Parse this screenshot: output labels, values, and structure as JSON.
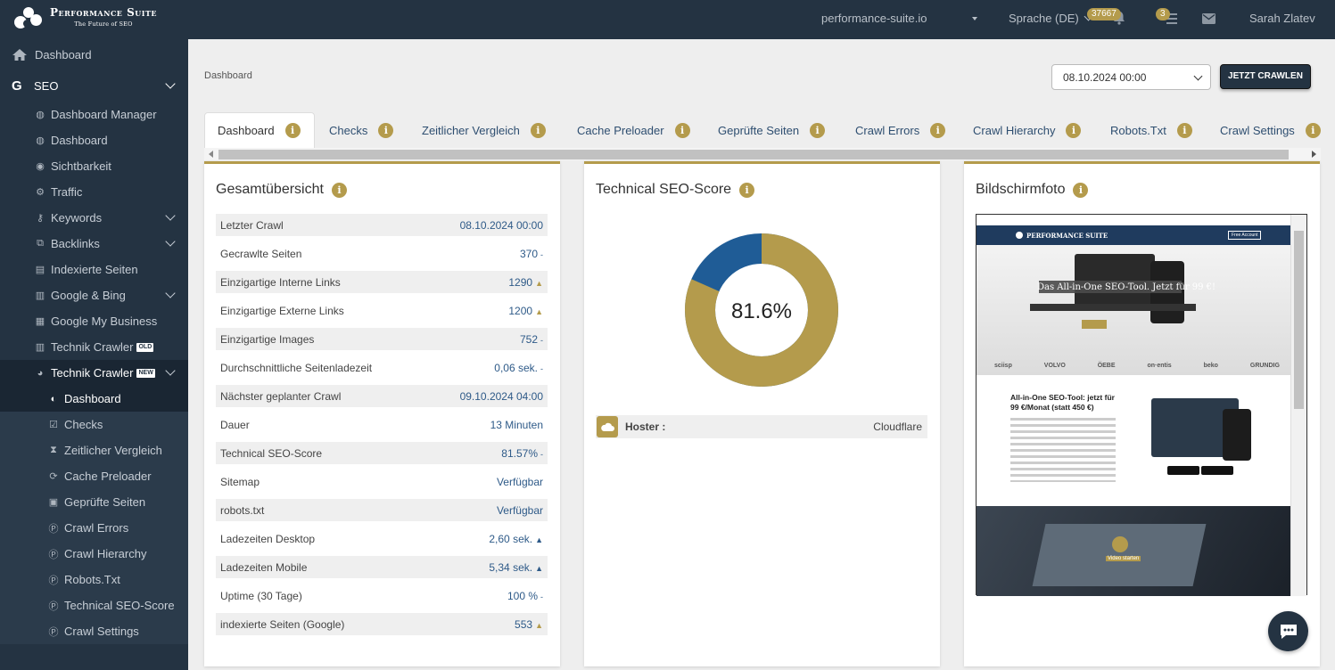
{
  "header": {
    "logo_title": "Performance Suite",
    "logo_subtitle": "The Future of SEO",
    "domain": "performance-suite.io",
    "language": "Sprache (DE)",
    "notifications_count": "37667",
    "tasks_count": "3",
    "user_name": "Sarah Zlatev"
  },
  "sidebar": {
    "dashboard": "Dashboard",
    "seo": "SEO",
    "items": [
      {
        "label": "Dashboard Manager",
        "icon": "dashboard-manager-icon"
      },
      {
        "label": "Dashboard",
        "icon": "dashboard-icon"
      },
      {
        "label": "Sichtbarkeit",
        "icon": "eye-icon"
      },
      {
        "label": "Traffic",
        "icon": "traffic-icon"
      },
      {
        "label": "Keywords",
        "icon": "key-icon"
      },
      {
        "label": "Backlinks",
        "icon": "external-link-icon"
      },
      {
        "label": "Indexierte Seiten",
        "icon": "file-icon"
      },
      {
        "label": "Google & Bing",
        "icon": "chart-icon"
      },
      {
        "label": "Google My Business",
        "icon": "store-icon"
      },
      {
        "label": "Technik Crawler",
        "icon": "chart-icon",
        "tag": "OLD"
      },
      {
        "label": "Technik Crawler",
        "icon": "pie-chart-icon",
        "tag": "NEW"
      }
    ],
    "sub_items": [
      {
        "label": "Dashboard",
        "icon": "gauge-icon"
      },
      {
        "label": "Checks",
        "icon": "check-square-icon"
      },
      {
        "label": "Zeitlicher Vergleich",
        "icon": "hourglass-icon"
      },
      {
        "label": "Cache Preloader",
        "icon": "refresh-icon"
      },
      {
        "label": "Geprüfte Seiten",
        "icon": "calendar-check-icon"
      },
      {
        "label": "Crawl Errors",
        "icon": "p-circle-icon"
      },
      {
        "label": "Crawl Hierarchy",
        "icon": "p-circle-icon"
      },
      {
        "label": "Robots.Txt",
        "icon": "p-circle-icon"
      },
      {
        "label": "Technical SEO-Score",
        "icon": "p-circle-icon"
      },
      {
        "label": "Crawl Settings",
        "icon": "p-circle-icon"
      }
    ]
  },
  "main": {
    "breadcrumb": "Dashboard",
    "date_select": "08.10.2024 00:00",
    "crawl_button": "JETZT CRAWLEN",
    "tabs": [
      "Dashboard",
      "Checks",
      "Zeitlicher Vergleich",
      "Cache Preloader",
      "Geprüfte Seiten",
      "Crawl Errors",
      "Crawl Hierarchy",
      "Robots.Txt",
      "Crawl Settings"
    ]
  },
  "overview": {
    "title": "Gesamtübersicht",
    "rows": [
      {
        "label": "Letzter Crawl",
        "value": "08.10.2024 00:00",
        "trend": ""
      },
      {
        "label": "Gecrawlte Seiten",
        "value": "370",
        "trend": "-"
      },
      {
        "label": "Einzigartige Interne Links",
        "value": "1290",
        "trend": "▲"
      },
      {
        "label": "Einzigartige Externe Links",
        "value": "1200",
        "trend": "▲"
      },
      {
        "label": "Einzigartige Images",
        "value": "752",
        "trend": "-"
      },
      {
        "label": "Durchschnittliche Seitenladezeit",
        "value": "0,06 sek.",
        "trend": "-"
      },
      {
        "label": "Nächster geplanter Crawl",
        "value": "09.10.2024 04:00",
        "trend": ""
      },
      {
        "label": "Dauer",
        "value": "13 Minuten",
        "trend": ""
      },
      {
        "label": "Technical SEO-Score",
        "value": "81.57%",
        "trend": "-"
      },
      {
        "label": "Sitemap",
        "value": "Verfügbar",
        "trend": ""
      },
      {
        "label": "robots.txt",
        "value": "Verfügbar",
        "trend": ""
      },
      {
        "label": "Ladezeiten Desktop",
        "value": "2,60 sek.",
        "trend": "▲"
      },
      {
        "label": "Ladezeiten Mobile",
        "value": "5,34 sek.",
        "trend": "▲"
      },
      {
        "label": "Uptime (30 Tage)",
        "value": "100 %",
        "trend": "-"
      },
      {
        "label": "indexierte Seiten (Google)",
        "value": "553",
        "trend": "▲"
      }
    ]
  },
  "score": {
    "title": "Technical SEO-Score",
    "value_label": "81.6%",
    "fraction": 0.816,
    "colors": {
      "score": "#b49b4c",
      "rest": "#1f5c96"
    },
    "hoster_label": "Hoster :",
    "hoster_value": "Cloudflare"
  },
  "screenshot": {
    "title": "Bildschirmfoto",
    "hero_text": "Das All-in-One SEO-Tool. Jetzt für 99 €!",
    "section_text": "All-in-One SEO-Tool: jetzt für 99 €/Monat (statt 450 €)",
    "nav_button": "Free Account",
    "brands": [
      "sciisp",
      "VOLVO",
      "ÖEBE",
      "on·entis",
      "beko",
      "GRUNDIG"
    ],
    "video_label": "Video starten"
  },
  "colors": {
    "accent": "#b49b4c",
    "navy": "#243342",
    "link": "#2e5a88"
  }
}
